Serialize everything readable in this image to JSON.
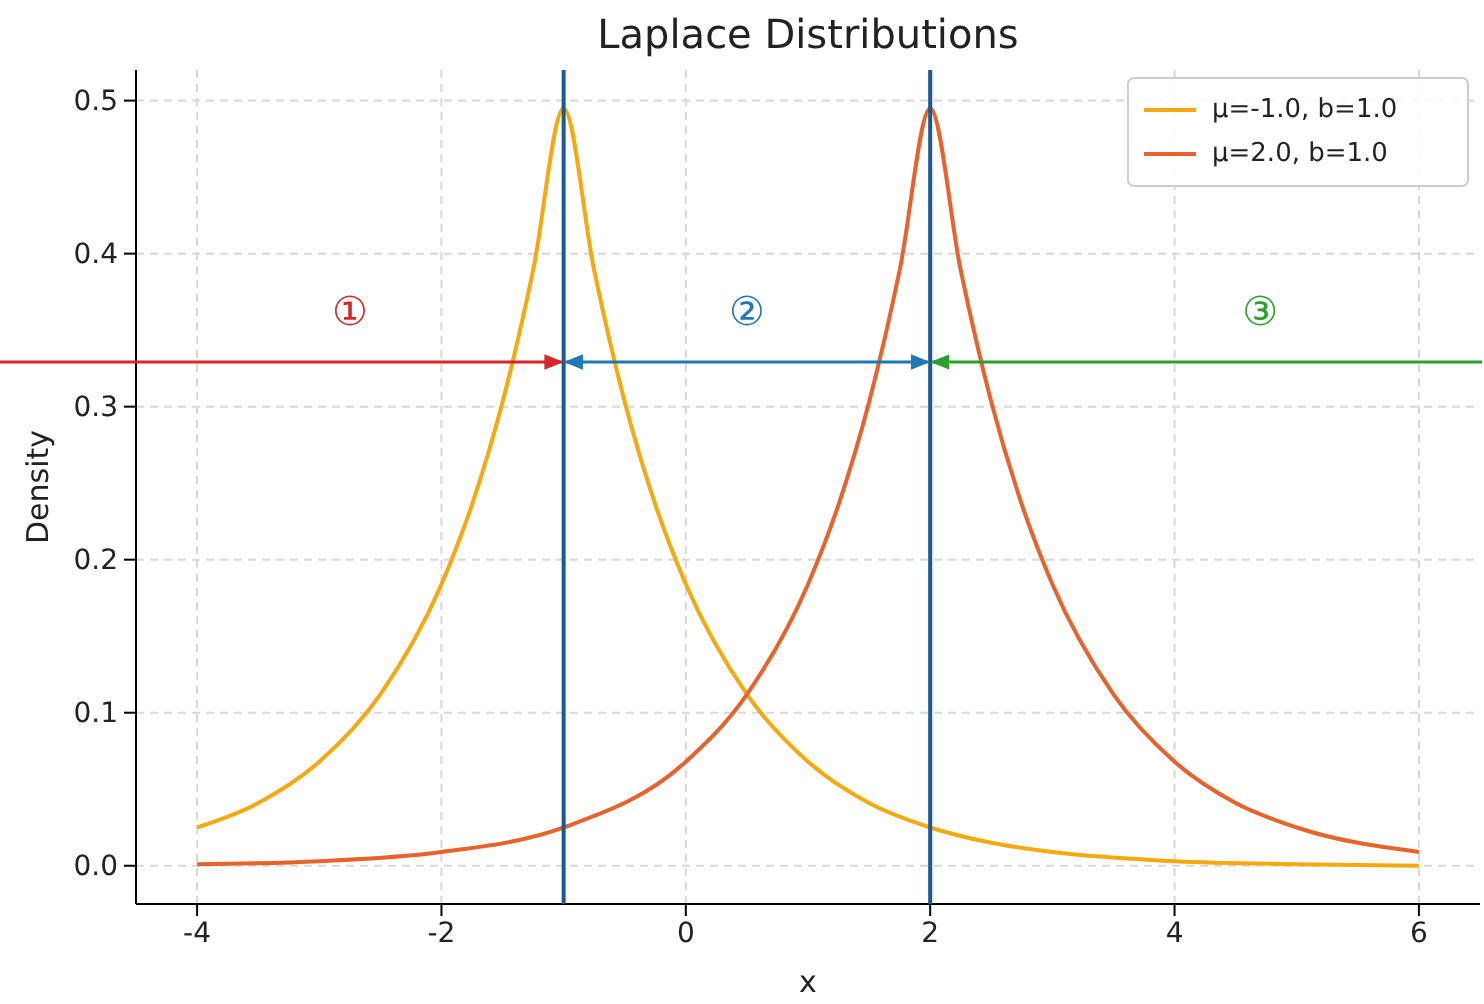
{
  "chart_data": {
    "type": "line",
    "title": "Laplace Distributions",
    "xlabel": "x",
    "ylabel": "Density",
    "xlim": [
      -4.5,
      6.5
    ],
    "xticks": [
      -4,
      -2,
      0,
      2,
      4,
      6
    ],
    "ylim": [
      -0.025,
      0.52
    ],
    "yticks": [
      {
        "value": 0,
        "label": "0.0"
      },
      0.1,
      0.2,
      0.3,
      0.4,
      0.5
    ],
    "grid": true,
    "legend": "top right",
    "line_style": "solid",
    "marker": "none",
    "series": [
      {
        "name": "μ=-1.0, b=1.0",
        "color": "#f5a90f",
        "x": [
          -4,
          -3.5,
          -3,
          -2.5,
          -2,
          -1.75,
          -1.5,
          -1.25,
          -1,
          -0.75,
          -0.5,
          -0.25,
          0,
          0.5,
          1,
          1.5,
          2,
          2.5,
          3,
          4,
          5,
          6
        ],
        "values": [
          0.025,
          0.041,
          0.068,
          0.112,
          0.184,
          0.236,
          0.303,
          0.389,
          0.495,
          0.389,
          0.303,
          0.236,
          0.184,
          0.112,
          0.068,
          0.041,
          0.025,
          0.015,
          0.009,
          0.003,
          0.001,
          0.0
        ]
      },
      {
        "name": "μ=2.0, b=1.0",
        "color": "#e8622c",
        "x": [
          -4,
          -3,
          -2,
          -1,
          0,
          0.5,
          1,
          1.25,
          1.5,
          1.75,
          2,
          2.25,
          2.5,
          2.75,
          3,
          3.5,
          4,
          4.5,
          5,
          6
        ],
        "values": [
          0.001,
          0.003,
          0.009,
          0.025,
          0.068,
          0.112,
          0.184,
          0.236,
          0.303,
          0.389,
          0.495,
          0.389,
          0.303,
          0.236,
          0.184,
          0.112,
          0.068,
          0.041,
          0.025,
          0.009
        ]
      }
    ],
    "ref_lines": [
      {
        "axis": "x",
        "value": -1,
        "color": "#1c5a97"
      },
      {
        "axis": "x",
        "value": 2,
        "color": "#1c5a97"
      }
    ],
    "annotations": [
      "①",
      "②",
      "③"
    ]
  }
}
